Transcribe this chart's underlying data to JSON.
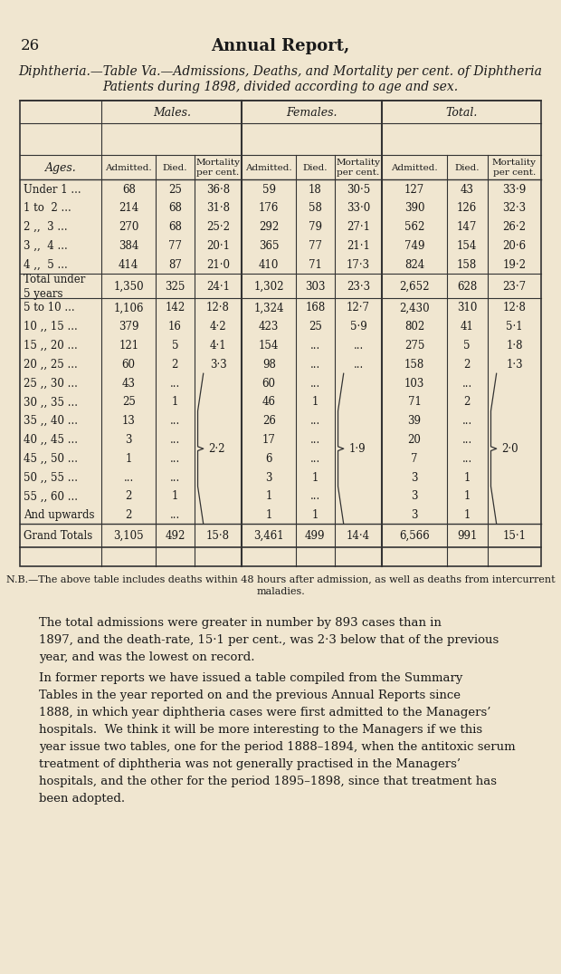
{
  "page_number": "26",
  "main_title": "Annual Report,",
  "subtitle_line1": "Diphtheria.—Table Va.—Admissions, Deaths, and Mortality per cent. of Diphtheria",
  "subtitle_line2": "Patients during 1898, divided according to age and sex.",
  "bg_color": "#f0e6d0",
  "rows": [
    {
      "age": "Under 1 ...",
      "m_adm": "68",
      "m_die": "25",
      "m_mor": "36·8",
      "f_adm": "59",
      "f_die": "18",
      "f_mor": "30·5",
      "t_adm": "127",
      "t_die": "43",
      "t_mor": "33·9"
    },
    {
      "age": "1 to  2 ...",
      "m_adm": "214",
      "m_die": "68",
      "m_mor": "31·8",
      "f_adm": "176",
      "f_die": "58",
      "f_mor": "33·0",
      "t_adm": "390",
      "t_die": "126",
      "t_mor": "32·3"
    },
    {
      "age": "2 ,,  3 ...",
      "m_adm": "270",
      "m_die": "68",
      "m_mor": "25·2",
      "f_adm": "292",
      "f_die": "79",
      "f_mor": "27·1",
      "t_adm": "562",
      "t_die": "147",
      "t_mor": "26·2"
    },
    {
      "age": "3 ,,  4 ...",
      "m_adm": "384",
      "m_die": "77",
      "m_mor": "20·1",
      "f_adm": "365",
      "f_die": "77",
      "f_mor": "21·1",
      "t_adm": "749",
      "t_die": "154",
      "t_mor": "20·6"
    },
    {
      "age": "4 ,,  5 ...",
      "m_adm": "414",
      "m_die": "87",
      "m_mor": "21·0",
      "f_adm": "410",
      "f_die": "71",
      "f_mor": "17·3",
      "t_adm": "824",
      "t_die": "158",
      "t_mor": "19·2"
    },
    {
      "age": "Total under\n5 years",
      "m_adm": "1,350",
      "m_die": "325",
      "m_mor": "24·1",
      "f_adm": "1,302",
      "f_die": "303",
      "f_mor": "23·3",
      "t_adm": "2,652",
      "t_die": "628",
      "t_mor": "23·7",
      "special": true
    },
    {
      "age": "5 to 10 ...",
      "m_adm": "1,106",
      "m_die": "142",
      "m_mor": "12·8",
      "f_adm": "1,324",
      "f_die": "168",
      "f_mor": "12·7",
      "t_adm": "2,430",
      "t_die": "310",
      "t_mor": "12·8"
    },
    {
      "age": "10 ,, 15 ...",
      "m_adm": "379",
      "m_die": "16",
      "m_mor": "4·2",
      "f_adm": "423",
      "f_die": "25",
      "f_mor": "5·9",
      "t_adm": "802",
      "t_die": "41",
      "t_mor": "5·1"
    },
    {
      "age": "15 ,, 20 ...",
      "m_adm": "121",
      "m_die": "5",
      "m_mor": "4·1",
      "f_adm": "154",
      "f_die": "...",
      "f_mor": "...",
      "t_adm": "275",
      "t_die": "5",
      "t_mor": "1·8"
    },
    {
      "age": "20 ,, 25 ...",
      "m_adm": "60",
      "m_die": "2",
      "m_mor": "3·3",
      "f_adm": "98",
      "f_die": "...",
      "f_mor": "...",
      "t_adm": "158",
      "t_die": "2",
      "t_mor": "1·3"
    },
    {
      "age": "25 ,, 30 ...",
      "m_adm": "43",
      "m_die": "...",
      "m_mor": "",
      "f_adm": "60",
      "f_die": "...",
      "f_mor": "",
      "t_adm": "103",
      "t_die": "...",
      "t_mor": "",
      "bracket_start": true
    },
    {
      "age": "30 ,, 35 ...",
      "m_adm": "25",
      "m_die": "1",
      "m_mor": "",
      "f_adm": "46",
      "f_die": "1",
      "f_mor": "",
      "t_adm": "71",
      "t_die": "2",
      "t_mor": ""
    },
    {
      "age": "35 ,, 40 ...",
      "m_adm": "13",
      "m_die": "...",
      "m_mor": "",
      "f_adm": "26",
      "f_die": "...",
      "f_mor": "",
      "t_adm": "39",
      "t_die": "...",
      "t_mor": ""
    },
    {
      "age": "40 ,, 45 ...",
      "m_adm": "3",
      "m_die": "...",
      "m_mor": "",
      "f_adm": "17",
      "f_die": "...",
      "f_mor": "",
      "t_adm": "20",
      "t_die": "...",
      "t_mor": ""
    },
    {
      "age": "45 ,, 50 ...",
      "m_adm": "1",
      "m_die": "...",
      "m_mor": "",
      "f_adm": "6",
      "f_die": "...",
      "f_mor": "",
      "t_adm": "7",
      "t_die": "...",
      "t_mor": "",
      "bracket_mid": true
    },
    {
      "age": "50 ,, 55 ...",
      "m_adm": "...",
      "m_die": "...",
      "m_mor": "",
      "f_adm": "3",
      "f_die": "1",
      "f_mor": "",
      "t_adm": "3",
      "t_die": "1",
      "t_mor": ""
    },
    {
      "age": "55 ,, 60 ...",
      "m_adm": "2",
      "m_die": "1",
      "m_mor": "",
      "f_adm": "1",
      "f_die": "...",
      "f_mor": "",
      "t_adm": "3",
      "t_die": "1",
      "t_mor": ""
    },
    {
      "age": "And upwards",
      "m_adm": "2",
      "m_die": "...",
      "m_mor": "",
      "f_adm": "1",
      "f_die": "1",
      "f_mor": "",
      "t_adm": "3",
      "t_die": "1",
      "t_mor": "",
      "bracket_end": true
    },
    {
      "age": "Grand Totals",
      "m_adm": "3,105",
      "m_die": "492",
      "m_mor": "15·8",
      "f_adm": "3,461",
      "f_die": "499",
      "f_mor": "14·4",
      "t_adm": "6,566",
      "t_die": "991",
      "t_mor": "15·1",
      "grand": true
    }
  ],
  "bracket_m_mor": "2·2",
  "bracket_f_mor": "1·9",
  "bracket_t_mor": "2·0",
  "nb_text": "N.B.—The above table includes deaths within 48 hours after admission, as well as deaths from intercurrent\nmaladies.",
  "para1": "The total admissions were greater in number by 893 cases than in\n1897, and the death-rate, 15·1 per cent., was 2·3 below that of the previous\nyear, and was the lowest on record.",
  "para2": "In former reports we have issued a table compiled from the Summary\nTables in the year reported on and the previous Annual Reports since\n1888, in which year diphtheria cases were first admitted to the Managers’\nhospitals.  We think it will be more interesting to the Managers if we this\nyear issue two tables, one for the period 1888–1894, when the antitoxic serum\ntreatment of diphtheria was not generally practised in the Managers’\nhospitals, and the other for the period 1895–1898, since that treatment has\nbeen adopted."
}
